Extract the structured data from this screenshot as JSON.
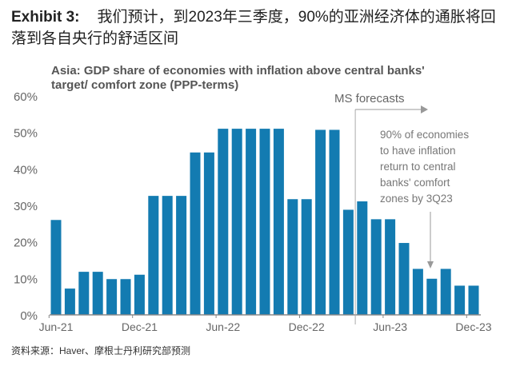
{
  "header": {
    "exhibit": "Exhibit 3:",
    "title": "我们预计，到2023年三季度，90%的亚洲经济体的通胀将回落到各自央行的舒适区间"
  },
  "source": "资料来源：Haver、摩根士丹利研究部预测",
  "chart_data": {
    "type": "bar",
    "title": "Asia: GDP share of economies with inflation above central banks' target/ comfort zone (PPP-terms)",
    "categories": [
      "Jun-21",
      "Jul-21",
      "Aug-21",
      "Sep-21",
      "Oct-21",
      "Nov-21",
      "Dec-21",
      "Jan-22",
      "Feb-22",
      "Mar-22",
      "Apr-22",
      "May-22",
      "Jun-22",
      "Jul-22",
      "Aug-22",
      "Sep-22",
      "Oct-22",
      "Nov-22",
      "Dec-22",
      "Jan-23",
      "Feb-23",
      "Mar-23",
      "Apr-23",
      "May-23",
      "Jun-23",
      "Jul-23",
      "Aug-23",
      "Sep-23",
      "Oct-23",
      "Nov-23",
      "Dec-23"
    ],
    "values": [
      26,
      7.2,
      11.8,
      11.8,
      9.8,
      9.8,
      11,
      32.6,
      32.6,
      32.6,
      44.5,
      44.5,
      51,
      51,
      51,
      51,
      51,
      31.7,
      31.7,
      50.7,
      50.7,
      28.8,
      31.1,
      26.2,
      26.2,
      19.7,
      12.6,
      9.9,
      12.6,
      8,
      8
    ],
    "x_tick_labels": [
      "Jun-21",
      "Dec-21",
      "Jun-22",
      "Dec-22",
      "Jun-23",
      "Dec-23"
    ],
    "y_tick_labels": [
      "0%",
      "10%",
      "20%",
      "30%",
      "40%",
      "50%",
      "60%"
    ],
    "ylim": [
      0,
      60
    ],
    "bar_color": "#137bb1",
    "annotations": {
      "forecast_label": "MS forecasts",
      "note": [
        "90% of economies",
        "to have inflation",
        "return to central",
        "banks' comfort",
        "zones by 3Q23"
      ]
    }
  }
}
